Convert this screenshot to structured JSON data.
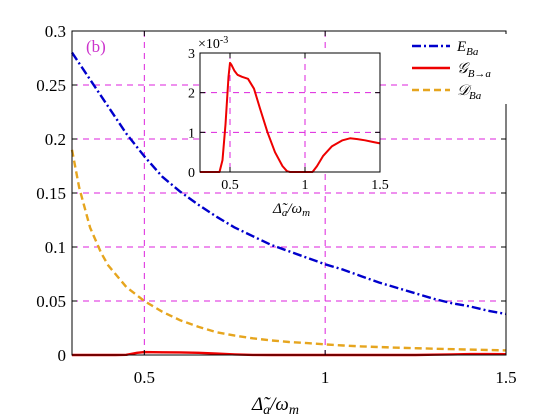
{
  "chart_data": [
    {
      "type": "line",
      "panel_label": "(b)",
      "xlabel": "Δ̃a/ωm",
      "ylabel": "",
      "xlim": [
        0.3,
        1.5
      ],
      "ylim": [
        0,
        0.3
      ],
      "xticks": [
        "0.5",
        "1",
        "1.5"
      ],
      "yticks": [
        "0",
        "0.05",
        "0.1",
        "0.15",
        "0.2",
        "0.25",
        "0.3"
      ],
      "grid": true,
      "legend_position": "top-right",
      "series": [
        {
          "name": "E_Ba",
          "legend_label": "E",
          "legend_sub": "Ba",
          "color": "#0000cc",
          "style": "dashdot",
          "x": [
            0.3,
            0.35,
            0.4,
            0.45,
            0.5,
            0.55,
            0.6,
            0.65,
            0.7,
            0.75,
            0.8,
            0.85,
            0.9,
            0.95,
            1.0,
            1.05,
            1.1,
            1.15,
            1.2,
            1.25,
            1.3,
            1.35,
            1.4,
            1.45,
            1.5
          ],
          "y": [
            0.28,
            0.255,
            0.23,
            0.205,
            0.184,
            0.165,
            0.151,
            0.139,
            0.128,
            0.118,
            0.11,
            0.102,
            0.096,
            0.09,
            0.084,
            0.079,
            0.073,
            0.067,
            0.062,
            0.057,
            0.052,
            0.048,
            0.045,
            0.041,
            0.038
          ]
        },
        {
          "name": "G_B→a",
          "legend_label": "𝒢",
          "legend_sub": "B→a",
          "color": "#ee0000",
          "style": "solid",
          "x": [
            0.3,
            0.42,
            0.45,
            0.48,
            0.5,
            0.55,
            0.6,
            0.65,
            0.7,
            0.75,
            0.8,
            0.85,
            0.9,
            0.95,
            1.0,
            1.05,
            1.1,
            1.15,
            1.2,
            1.25,
            1.3,
            1.35,
            1.4,
            1.45,
            1.5
          ],
          "y": [
            0,
            0,
            0.0002,
            0.002,
            0.0027,
            0.0025,
            0.0024,
            0.002,
            0.0013,
            0.0006,
            0.0001,
            0,
            0,
            0,
            0,
            0,
            0,
            0,
            0,
            0,
            0.0003,
            0.0006,
            0.0008,
            0.0008,
            0.0007
          ]
        },
        {
          "name": "D_Ba",
          "legend_label": "𝒟",
          "legend_sub": "Ba",
          "color": "#e6a51e",
          "style": "dashed",
          "x": [
            0.3,
            0.32,
            0.35,
            0.38,
            0.4,
            0.45,
            0.5,
            0.55,
            0.6,
            0.65,
            0.7,
            0.75,
            0.8,
            0.85,
            0.9,
            0.95,
            1.0,
            1.05,
            1.1,
            1.2,
            1.3,
            1.4,
            1.5
          ],
          "y": [
            0.19,
            0.155,
            0.118,
            0.095,
            0.083,
            0.063,
            0.05,
            0.04,
            0.032,
            0.026,
            0.021,
            0.018,
            0.0155,
            0.0135,
            0.012,
            0.011,
            0.0098,
            0.0088,
            0.008,
            0.0068,
            0.0058,
            0.005,
            0.0043
          ]
        }
      ]
    },
    {
      "type": "line",
      "role": "inset",
      "xlabel": "Δ̃a/ωm",
      "ylabel": "",
      "y_multiplier": "×10-3",
      "xlim": [
        0.3,
        1.5
      ],
      "ylim": [
        0,
        3
      ],
      "xticks": [
        "0.5",
        "1",
        "1.5"
      ],
      "yticks": [
        "0",
        "1",
        "2",
        "3"
      ],
      "grid": true,
      "series": [
        {
          "name": "G_B→a",
          "color": "#ee0000",
          "style": "solid",
          "x": [
            0.3,
            0.43,
            0.45,
            0.47,
            0.49,
            0.5,
            0.51,
            0.53,
            0.55,
            0.58,
            0.62,
            0.66,
            0.7,
            0.75,
            0.8,
            0.85,
            0.88,
            0.9,
            1.05,
            1.08,
            1.12,
            1.18,
            1.25,
            1.3,
            1.35,
            1.4,
            1.45,
            1.5
          ],
          "y": [
            0,
            0,
            0.3,
            1.2,
            2.4,
            2.75,
            2.7,
            2.55,
            2.45,
            2.4,
            2.35,
            2.1,
            1.6,
            1.0,
            0.5,
            0.15,
            0.02,
            0,
            0,
            0.15,
            0.4,
            0.65,
            0.8,
            0.85,
            0.83,
            0.8,
            0.76,
            0.72
          ]
        }
      ]
    }
  ],
  "axis_text": {
    "main_x_base": "Δ̃",
    "main_x_sub1": "a",
    "main_x_sep": "/ω",
    "main_x_sub2": "m",
    "inset_mult_prefix": "×10",
    "inset_mult_exp": "-3"
  }
}
